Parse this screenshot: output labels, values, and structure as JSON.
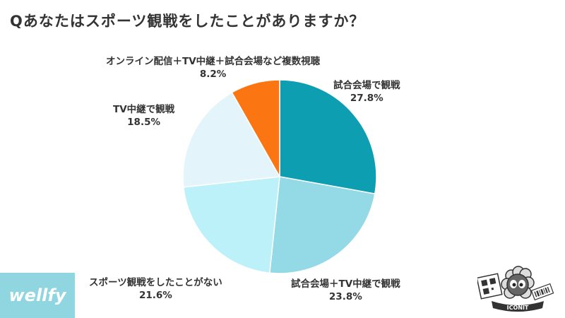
{
  "title": "Qあなたはスポーツ観戦をしたことがありますか？",
  "brand": {
    "left_logo_text": "wellfy",
    "right_logo_text": "ICONIT"
  },
  "colors": {
    "slice1": "#0e9eb1",
    "slice2": "#93d9e6",
    "slice3": "#bdf1fa",
    "slice4": "#e3f5fb",
    "slice5": "#fb7612",
    "label_text": "#333333",
    "brand_bg": "#8fd6e1"
  },
  "chart_data": {
    "type": "pie",
    "title": "Qあなたはスポーツ観戦をしたことがありますか？",
    "start": "12 o'clock, clockwise",
    "slices": [
      {
        "label": "試合会場で観戦",
        "value": 27.8,
        "value_label": "27.8%"
      },
      {
        "label": "試合会場＋TV中継で観戦",
        "value": 23.8,
        "value_label": "23.8%"
      },
      {
        "label": "スポーツ観戦をしたことがない",
        "value": 21.6,
        "value_label": "21.6%"
      },
      {
        "label": "TV中継で観戦",
        "value": 18.5,
        "value_label": "18.5%"
      },
      {
        "label": "オンライン配信＋TV中継＋試合会場など複数視聴",
        "value": 8.2,
        "value_label": "8.2%"
      }
    ]
  }
}
